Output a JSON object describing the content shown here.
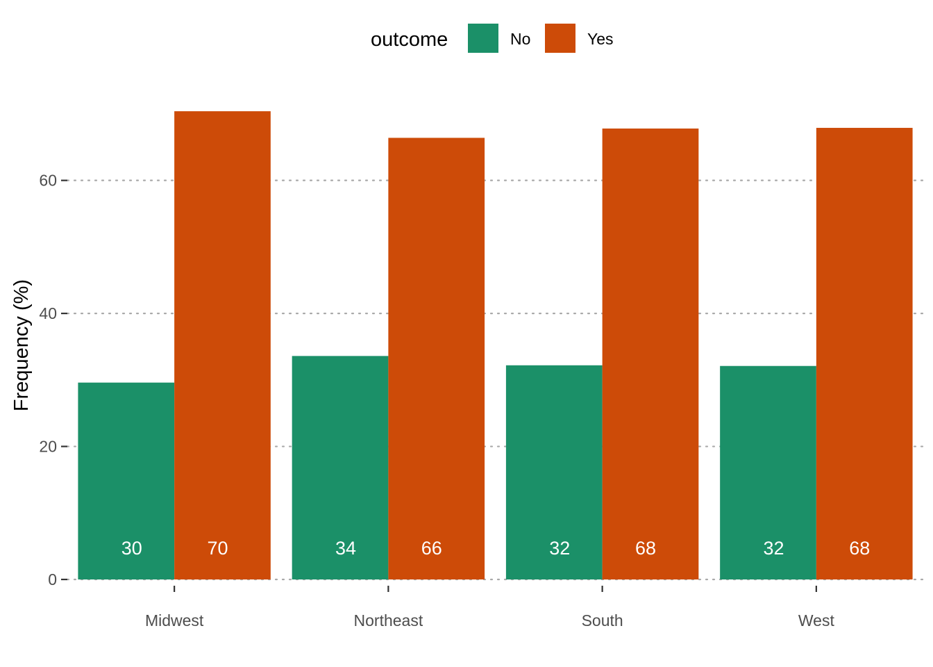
{
  "chart_data": {
    "type": "bar",
    "title": "",
    "xlabel": "",
    "ylabel": "Frequency (%)",
    "categories": [
      "Midwest",
      "Northeast",
      "South",
      "West"
    ],
    "series": [
      {
        "name": "No",
        "values": [
          29.6,
          33.6,
          32.2,
          32.1
        ],
        "labels": [
          "30",
          "34",
          "32",
          "32"
        ],
        "color": "#1b9068"
      },
      {
        "name": "Yes",
        "values": [
          70.4,
          66.4,
          67.8,
          67.9
        ],
        "labels": [
          "70",
          "66",
          "68",
          "68"
        ],
        "color": "#cd4b08"
      }
    ],
    "ylim": [
      0,
      72.5
    ],
    "yticks": [
      0,
      20,
      40,
      60
    ],
    "grid": {
      "horizontal": true,
      "vertical": false,
      "style": "dotted"
    },
    "legend": {
      "title": "outcome",
      "position": "top",
      "items": [
        "No",
        "Yes"
      ]
    }
  }
}
